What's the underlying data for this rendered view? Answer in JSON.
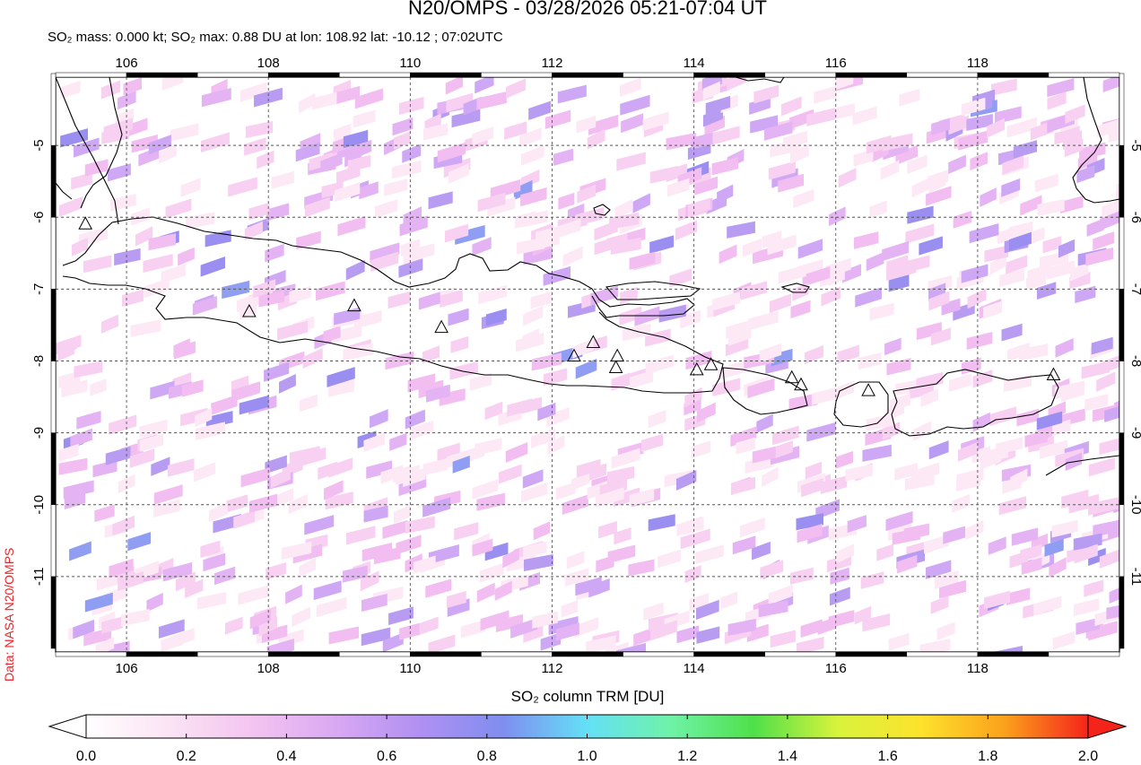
{
  "title": "N20/OMPS - 03/28/2026 05:21-07:04 UT",
  "subtitle": "SO₂ mass: 0.000 kt; SO₂ max: 0.88 DU at lon: 108.92 lat: -10.12 ; 07:02UTC",
  "credit": "Data: NASA N20/OMPS",
  "colorbar_label": "SO₂ column TRM [DU]",
  "map": {
    "lon_range": [
      105.0,
      120.0
    ],
    "lat_range": [
      -12.05,
      -4.05
    ],
    "lon_ticks": [
      "106",
      "108",
      "110",
      "112",
      "114",
      "116",
      "118"
    ],
    "lat_ticks": [
      "-5",
      "-6",
      "-7",
      "-8",
      "-9",
      "-10",
      "-11"
    ],
    "gridlines": "dashed",
    "volcanoes": [
      {
        "lon": 105.42,
        "lat": -6.1
      },
      {
        "lon": 107.73,
        "lat": -7.32
      },
      {
        "lon": 109.21,
        "lat": -7.24
      },
      {
        "lon": 110.44,
        "lat": -7.54
      },
      {
        "lon": 112.31,
        "lat": -7.94
      },
      {
        "lon": 112.58,
        "lat": -7.75
      },
      {
        "lon": 112.92,
        "lat": -7.94
      },
      {
        "lon": 112.9,
        "lat": -8.1
      },
      {
        "lon": 114.04,
        "lat": -8.13
      },
      {
        "lon": 114.24,
        "lat": -8.06
      },
      {
        "lon": 115.38,
        "lat": -8.24
      },
      {
        "lon": 115.51,
        "lat": -8.34
      },
      {
        "lon": 116.46,
        "lat": -8.42
      },
      {
        "lon": 119.07,
        "lat": -8.2
      }
    ]
  },
  "colorbar": {
    "ticks": [
      "0.0",
      "0.2",
      "0.4",
      "0.6",
      "0.8",
      "1.0",
      "1.2",
      "1.4",
      "1.6",
      "1.8",
      "2.0"
    ],
    "colors": [
      "#ffffff",
      "#fbe3f4",
      "#f3c4f0",
      "#d9a8f3",
      "#b090f2",
      "#7f8ef0",
      "#64e0f6",
      "#6ff2a8",
      "#4fe04a",
      "#d8f33c",
      "#fde22c",
      "#fba11c",
      "#f5241b"
    ]
  }
}
